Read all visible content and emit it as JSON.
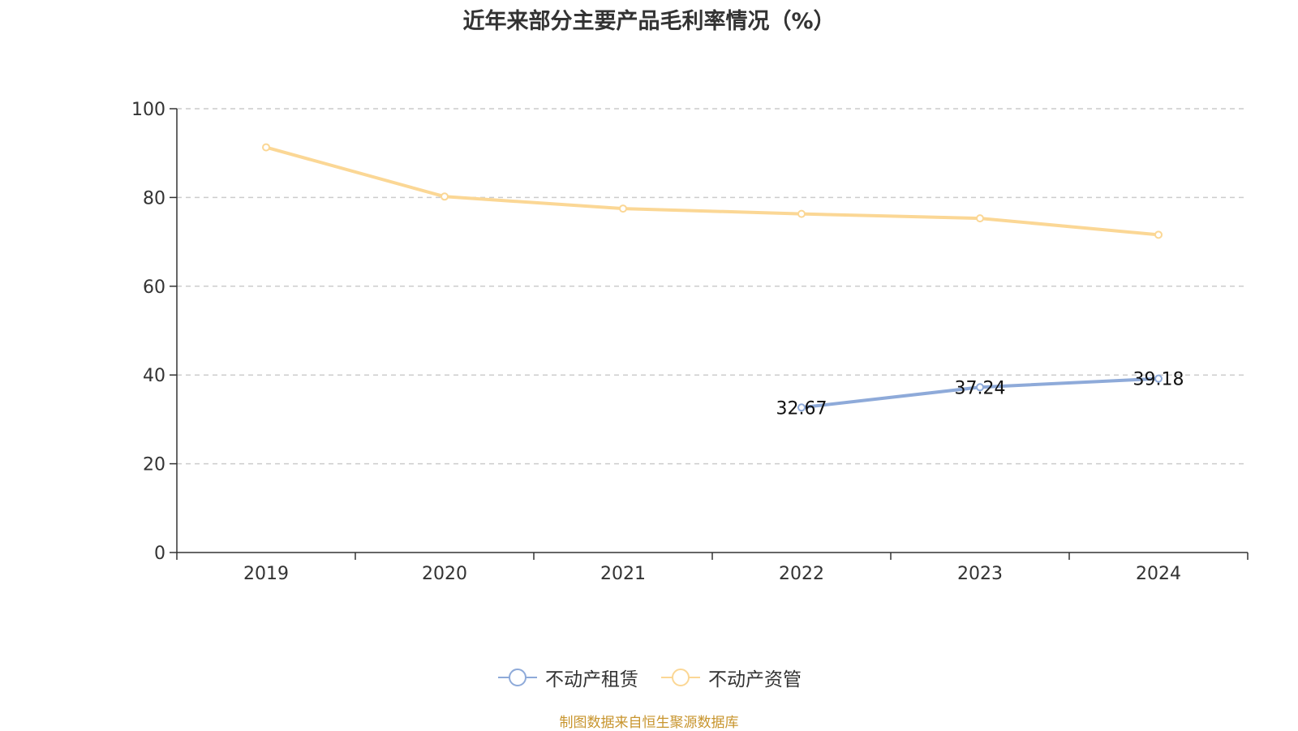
{
  "chart_data": {
    "type": "line",
    "title": "近年来部分主要产品毛利率情况（%）",
    "categories": [
      "2019",
      "2020",
      "2021",
      "2022",
      "2023",
      "2024"
    ],
    "ylim": [
      0,
      100
    ],
    "yticks": [
      0,
      20,
      40,
      60,
      80,
      100
    ],
    "grid": true,
    "legend_position": "bottom-center",
    "series": [
      {
        "name": "不动产租赁",
        "color": "#8eaad9",
        "values": [
          null,
          null,
          null,
          32.67,
          37.24,
          39.18
        ],
        "labels": [
          "",
          "",
          "",
          "32.67",
          "37.24",
          "39.18"
        ]
      },
      {
        "name": "不动产资管",
        "color": "#fbd795",
        "values": [
          91.3,
          80.2,
          77.5,
          76.3,
          75.3,
          71.6
        ],
        "labels": [
          "",
          "",
          "",
          "",
          "",
          ""
        ]
      }
    ]
  },
  "source": "制图数据来自恒生聚源数据库"
}
